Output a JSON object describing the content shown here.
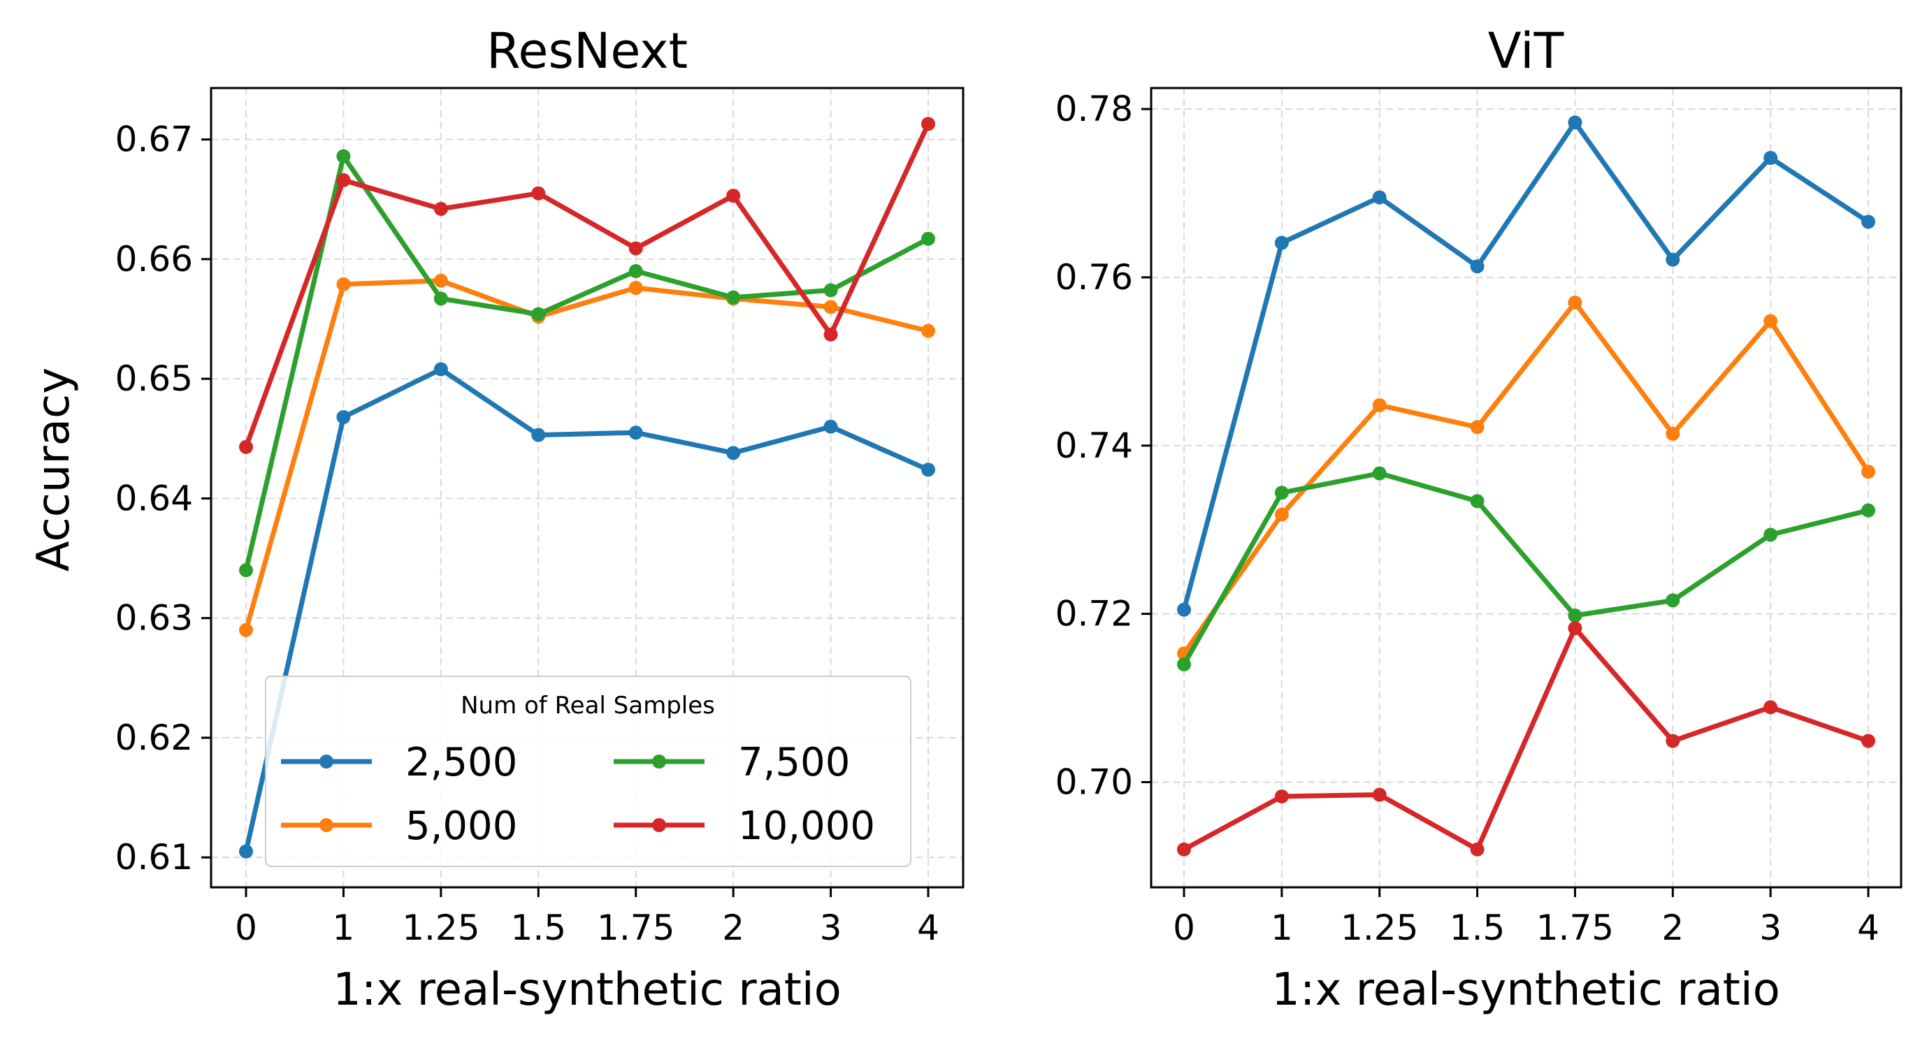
{
  "chart_data": [
    {
      "type": "line",
      "title": "ResNext",
      "xlabel": "1:x real-synthetic ratio",
      "ylabel": "Accuracy",
      "categories": [
        "0",
        "1",
        "1.25",
        "1.5",
        "1.75",
        "2",
        "3",
        "4"
      ],
      "ylim": [
        0.6075,
        0.6743
      ],
      "yticks": [
        0.61,
        0.62,
        0.63,
        0.64,
        0.65,
        0.66,
        0.67
      ],
      "ytick_labels": [
        "0.61",
        "0.62",
        "0.63",
        "0.64",
        "0.65",
        "0.66",
        "0.67"
      ],
      "grid": true,
      "legend": {
        "title": "Num of Real Samples",
        "placement": "lower-center",
        "columns": 2
      },
      "series": [
        {
          "name": "2,500",
          "color": "#1f77b4",
          "values": [
            0.6105,
            0.6468,
            0.6508,
            0.6453,
            0.6455,
            0.6438,
            0.646,
            0.6424
          ]
        },
        {
          "name": "5,000",
          "color": "#ff7f0e",
          "values": [
            0.629,
            0.6579,
            0.6582,
            0.6552,
            0.6576,
            0.6567,
            0.656,
            0.654
          ]
        },
        {
          "name": "7,500",
          "color": "#2ca02c",
          "values": [
            0.634,
            0.6686,
            0.6567,
            0.6554,
            0.659,
            0.6568,
            0.6574,
            0.6617
          ]
        },
        {
          "name": "10,000",
          "color": "#d62728",
          "values": [
            0.6443,
            0.6666,
            0.6642,
            0.6655,
            0.6609,
            0.6653,
            0.6537,
            0.6713
          ]
        }
      ]
    },
    {
      "type": "line",
      "title": "ViT",
      "xlabel": "1:x real-synthetic ratio",
      "ylabel": "",
      "categories": [
        "0",
        "1",
        "1.25",
        "1.5",
        "1.75",
        "2",
        "3",
        "4"
      ],
      "ylim": [
        0.6875,
        0.7825
      ],
      "yticks": [
        0.7,
        0.72,
        0.74,
        0.76,
        0.78
      ],
      "ytick_labels": [
        "0.70",
        "0.72",
        "0.74",
        "0.76",
        "0.78"
      ],
      "grid": true,
      "series": [
        {
          "name": "2,500",
          "color": "#1f77b4",
          "values": [
            0.7205,
            0.7641,
            0.7695,
            0.7613,
            0.7784,
            0.7621,
            0.7742,
            0.7666
          ]
        },
        {
          "name": "5,000",
          "color": "#ff7f0e",
          "values": [
            0.7153,
            0.7318,
            0.7448,
            0.7422,
            0.757,
            0.7414,
            0.7548,
            0.7369
          ]
        },
        {
          "name": "7,500",
          "color": "#2ca02c",
          "values": [
            0.714,
            0.7344,
            0.7367,
            0.7334,
            0.7198,
            0.7216,
            0.7294,
            0.7323
          ]
        },
        {
          "name": "10,000",
          "color": "#d62728",
          "values": [
            0.692,
            0.6983,
            0.6985,
            0.692,
            0.7183,
            0.7049,
            0.7089,
            0.7049
          ]
        }
      ]
    }
  ]
}
